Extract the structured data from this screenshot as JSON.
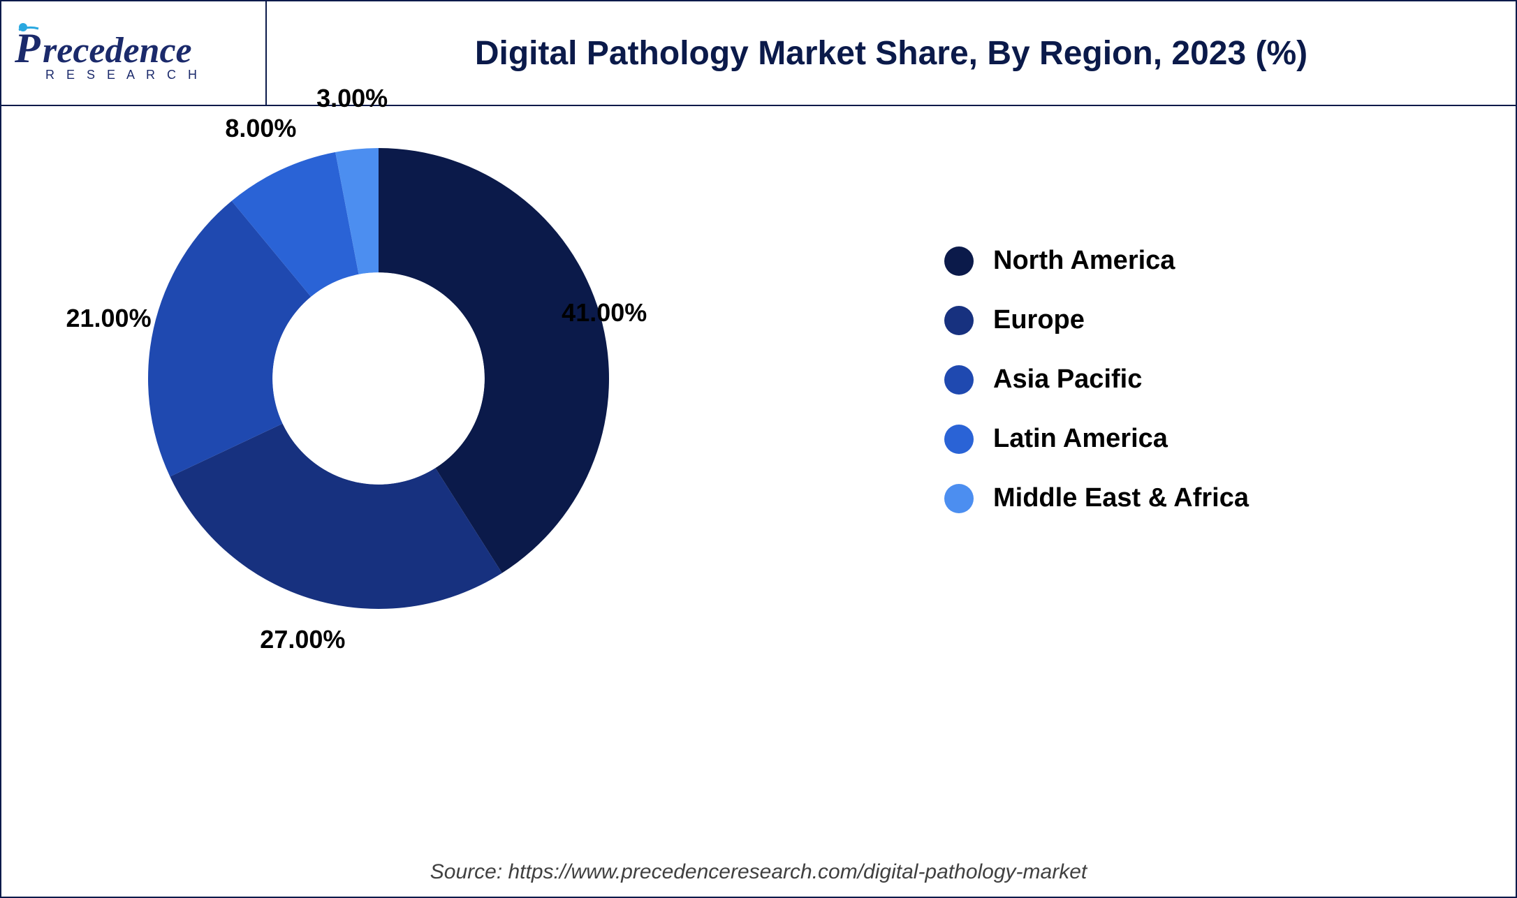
{
  "brand": {
    "name_a": "P",
    "name_b": "recedence",
    "tagline": "R  E  S  E  A  R  C  H",
    "primary_color": "#1b2a6b",
    "accent_color": "#2aa8e0"
  },
  "chart": {
    "type": "donut",
    "title": "Digital Pathology Market Share, By Region, 2023 (%)",
    "title_fontsize": 48,
    "title_color": "#0b1a4a",
    "background_color": "#ffffff",
    "border_color": "#0b1a4a",
    "inner_radius_ratio": 0.46,
    "outer_radius": 330,
    "start_angle_deg": 0,
    "label_fontsize": 36,
    "label_color": "#000000",
    "legend_fontsize": 38,
    "legend_color": "#000000",
    "legend_dot_size": 42,
    "segments": [
      {
        "name": "North America",
        "value": 41.0,
        "color": "#0b1a4a",
        "label": "41.00%",
        "label_radius_ratio": 1.02
      },
      {
        "name": "Europe",
        "value": 27.0,
        "color": "#17317f",
        "label": "27.00%",
        "label_radius_ratio": 1.18
      },
      {
        "name": "Asia Pacific",
        "value": 21.0,
        "color": "#1f49b0",
        "label": "21.00%",
        "label_radius_ratio": 1.2
      },
      {
        "name": "Latin America",
        "value": 8.0,
        "color": "#2a63d6",
        "label": "8.00%",
        "label_radius_ratio": 1.2
      },
      {
        "name": "Middle East & Africa",
        "value": 3.0,
        "color": "#4c8ef0",
        "label": "3.00%",
        "label_radius_ratio": 1.22
      }
    ],
    "source": "Source: https://www.precedenceresearch.com/digital-pathology-market",
    "source_fontsize": 30,
    "source_color": "#404040"
  }
}
